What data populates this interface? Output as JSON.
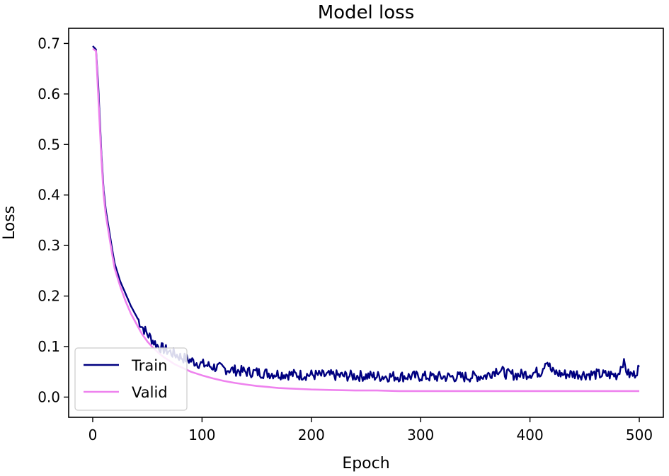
{
  "chart_data": {
    "type": "line",
    "title": "Model loss",
    "xlabel": "Epoch",
    "ylabel": "Loss",
    "xlim": [
      -22,
      522
    ],
    "ylim": [
      -0.04,
      0.73
    ],
    "xticks": [
      0,
      100,
      200,
      300,
      400,
      500
    ],
    "yticks": [
      0.0,
      0.1,
      0.2,
      0.3,
      0.4,
      0.5,
      0.6,
      0.7
    ],
    "xtick_labels": [
      "0",
      "100",
      "200",
      "300",
      "400",
      "500"
    ],
    "ytick_labels": [
      "0.0",
      "0.1",
      "0.2",
      "0.3",
      "0.4",
      "0.5",
      "0.6",
      "0.7"
    ],
    "grid": false,
    "legend": {
      "placement": "lower-left",
      "entries": [
        "Train",
        "Valid"
      ]
    },
    "series": [
      {
        "name": "Train",
        "color": "#000080",
        "x": [
          0,
          3,
          5,
          8,
          10,
          12,
          15,
          18,
          20,
          25,
          30,
          35,
          40,
          45,
          50,
          55,
          60,
          65,
          70,
          75,
          80,
          90,
          100,
          110,
          120,
          130,
          140,
          150,
          160,
          170,
          180,
          190,
          200,
          210,
          220,
          230,
          240,
          250,
          260,
          270,
          280,
          290,
          300,
          310,
          320,
          330,
          340,
          350,
          360,
          370,
          380,
          390,
          400,
          410,
          415,
          420,
          430,
          440,
          450,
          460,
          470,
          480,
          485,
          490,
          495,
          500
        ],
        "y": [
          0.695,
          0.688,
          0.62,
          0.48,
          0.41,
          0.37,
          0.33,
          0.29,
          0.265,
          0.23,
          0.205,
          0.18,
          0.16,
          0.14,
          0.125,
          0.112,
          0.1,
          0.095,
          0.09,
          0.085,
          0.08,
          0.072,
          0.065,
          0.06,
          0.056,
          0.053,
          0.05,
          0.049,
          0.047,
          0.046,
          0.045,
          0.044,
          0.044,
          0.043,
          0.043,
          0.042,
          0.042,
          0.042,
          0.041,
          0.041,
          0.041,
          0.041,
          0.041,
          0.04,
          0.04,
          0.04,
          0.04,
          0.041,
          0.042,
          0.055,
          0.045,
          0.044,
          0.047,
          0.05,
          0.075,
          0.05,
          0.045,
          0.046,
          0.045,
          0.045,
          0.044,
          0.044,
          0.07,
          0.045,
          0.044,
          0.06
        ]
      },
      {
        "name": "Valid",
        "color": "#ee82ee",
        "x": [
          0,
          3,
          5,
          8,
          10,
          12,
          15,
          18,
          20,
          25,
          30,
          35,
          40,
          45,
          50,
          55,
          60,
          65,
          70,
          75,
          80,
          90,
          100,
          110,
          120,
          130,
          140,
          150,
          160,
          170,
          180,
          190,
          200,
          220,
          240,
          260,
          280,
          300,
          320,
          340,
          360,
          380,
          400,
          420,
          440,
          460,
          480,
          500
        ],
        "y": [
          0.69,
          0.685,
          0.6,
          0.47,
          0.4,
          0.36,
          0.32,
          0.28,
          0.255,
          0.22,
          0.19,
          0.165,
          0.145,
          0.125,
          0.11,
          0.098,
          0.088,
          0.079,
          0.072,
          0.065,
          0.06,
          0.05,
          0.043,
          0.037,
          0.032,
          0.028,
          0.025,
          0.022,
          0.02,
          0.018,
          0.017,
          0.016,
          0.015,
          0.014,
          0.013,
          0.013,
          0.012,
          0.012,
          0.012,
          0.012,
          0.012,
          0.012,
          0.012,
          0.012,
          0.012,
          0.012,
          0.012,
          0.012
        ]
      }
    ]
  }
}
